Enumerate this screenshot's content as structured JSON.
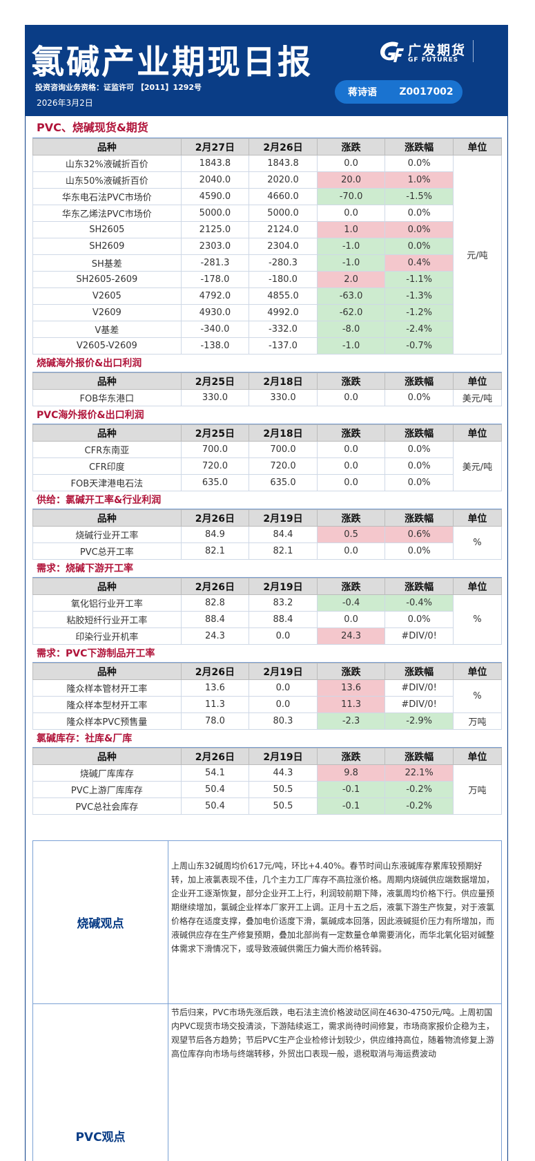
{
  "header": {
    "title": "氯碱产业期现日报",
    "license": "投资咨询业务资格：证监许可 【2011】1292号",
    "date": "2026年3月2日",
    "logo_cn": "广发期货",
    "logo_en": "GF FUTURES",
    "analyst_name": "蒋诗语",
    "analyst_id": "Z0017002"
  },
  "sections": [
    {
      "title": "PVC、烧碱现货&期货",
      "headers": [
        "品种",
        "2月27日",
        "2月26日",
        "涨跌",
        "涨跌幅",
        "单位"
      ],
      "unit": "元/吨",
      "rows": [
        {
          "name": "山东32%液碱折百价",
          "v1": "1843.8",
          "v2": "1843.8",
          "chg": "0.0",
          "pct": "0.0%"
        },
        {
          "name": "山东50%液碱折百价",
          "v1": "2040.0",
          "v2": "2020.0",
          "chg": "20.0",
          "pct": "1.0%"
        },
        {
          "name": "华东电石法PVC市场价",
          "v1": "4590.0",
          "v2": "4660.0",
          "chg": "-70.0",
          "pct": "-1.5%"
        },
        {
          "name": "华东乙烯法PVC市场价",
          "v1": "5000.0",
          "v2": "5000.0",
          "chg": "0.0",
          "pct": "0.0%"
        },
        {
          "name": "SH2605",
          "v1": "2125.0",
          "v2": "2124.0",
          "chg": "1.0",
          "pct": "0.0%"
        },
        {
          "name": "SH2609",
          "v1": "2303.0",
          "v2": "2304.0",
          "chg": "-1.0",
          "pct": "0.0%"
        },
        {
          "name": "SH基差",
          "v1": "-281.3",
          "v2": "-280.3",
          "chg": "-1.0",
          "pct": "0.4%"
        },
        {
          "name": "SH2605-2609",
          "v1": "-178.0",
          "v2": "-180.0",
          "chg": "2.0",
          "pct": "-1.1%"
        },
        {
          "name": "V2605",
          "v1": "4792.0",
          "v2": "4855.0",
          "chg": "-63.0",
          "pct": "-1.3%"
        },
        {
          "name": "V2609",
          "v1": "4930.0",
          "v2": "4992.0",
          "chg": "-62.0",
          "pct": "-1.2%"
        },
        {
          "name": "V基差",
          "v1": "-340.0",
          "v2": "-332.0",
          "chg": "-8.0",
          "pct": "-2.4%"
        },
        {
          "name": "V2605-V2609",
          "v1": "-138.0",
          "v2": "-137.0",
          "chg": "-1.0",
          "pct": "-0.7%"
        }
      ]
    },
    {
      "title": "烧碱海外报价&出口利润",
      "headers": [
        "品种",
        "2月25日",
        "2月18日",
        "涨跌",
        "涨跌幅",
        "单位"
      ],
      "unit": "美元/吨",
      "rows": [
        {
          "name": "FOB华东港口",
          "v1": "330.0",
          "v2": "330.0",
          "chg": "0.0",
          "pct": "0.0%"
        }
      ]
    },
    {
      "title": "PVC海外报价&出口利润",
      "headers": [
        "品种",
        "2月25日",
        "2月18日",
        "涨跌",
        "涨跌幅",
        "单位"
      ],
      "unit": "美元/吨",
      "rows": [
        {
          "name": "CFR东南亚",
          "v1": "700.0",
          "v2": "700.0",
          "chg": "0.0",
          "pct": "0.0%"
        },
        {
          "name": "CFR印度",
          "v1": "720.0",
          "v2": "720.0",
          "chg": "0.0",
          "pct": "0.0%"
        },
        {
          "name": "FOB天津港电石法",
          "v1": "635.0",
          "v2": "635.0",
          "chg": "0.0",
          "pct": "0.0%"
        }
      ]
    },
    {
      "title": "供给：氯碱开工率&行业利润",
      "headers": [
        "品种",
        "2月26日",
        "2月19日",
        "涨跌",
        "涨跌幅",
        "单位"
      ],
      "unit": "%",
      "rows": [
        {
          "name": "烧碱行业开工率",
          "v1": "84.9",
          "v2": "84.4",
          "chg": "0.5",
          "pct": "0.6%"
        },
        {
          "name": "PVC总开工率",
          "v1": "82.1",
          "v2": "82.1",
          "chg": "0.0",
          "pct": "0.0%"
        }
      ]
    },
    {
      "title": "需求：烧碱下游开工率",
      "headers": [
        "品种",
        "2月26日",
        "2月19日",
        "涨跌",
        "涨跌幅",
        "单位"
      ],
      "unit": "%",
      "rows": [
        {
          "name": "氧化铝行业开工率",
          "v1": "82.8",
          "v2": "83.2",
          "chg": "-0.4",
          "pct": "-0.4%"
        },
        {
          "name": "粘胶短纤行业开工率",
          "v1": "88.4",
          "v2": "88.4",
          "chg": "0.0",
          "pct": "0.0%"
        },
        {
          "name": "印染行业开机率",
          "v1": "24.3",
          "v2": "0.0",
          "chg": "24.3",
          "pct": "#DIV/0!"
        }
      ]
    },
    {
      "title": "需求：PVC下游制品开工率",
      "headers": [
        "品种",
        "2月26日",
        "2月19日",
        "涨跌",
        "涨跌幅",
        "单位"
      ],
      "unit": "%",
      "unit2": "万吨",
      "rows": [
        {
          "name": "隆众样本管材开工率",
          "v1": "13.6",
          "v2": "0.0",
          "chg": "13.6",
          "pct": "#DIV/0!"
        },
        {
          "name": "隆众样本型材开工率",
          "v1": "11.3",
          "v2": "0.0",
          "chg": "11.3",
          "pct": "#DIV/0!"
        },
        {
          "name": "隆众样本PVC预售量",
          "v1": "78.0",
          "v2": "80.3",
          "chg": "-2.3",
          "pct": "-2.9%"
        }
      ]
    },
    {
      "title": "氯碱库存：社库&厂库",
      "headers": [
        "品种",
        "2月26日",
        "2月19日",
        "涨跌",
        "涨跌幅",
        "单位"
      ],
      "unit": "万吨",
      "rows": [
        {
          "name": "烧碱厂库库存",
          "v1": "54.1",
          "v2": "44.3",
          "chg": "9.8",
          "pct": "22.1%"
        },
        {
          "name": "PVC上游厂库库存",
          "v1": "50.4",
          "v2": "50.5",
          "chg": "-0.1",
          "pct": "-0.2%"
        },
        {
          "name": "PVC总社会库存",
          "v1": "50.4",
          "v2": "50.5",
          "chg": "-0.1",
          "pct": "-0.2%"
        }
      ]
    }
  ],
  "views": [
    {
      "label": "烧碱观点",
      "text": "上周山东32碱周均价617元/吨，环比+4.40%。春节时间山东液碱库存累库较预期好转，加上液氯表现不佳，几个主力工厂库存不高拉涨价格。周期内烧碱供应端数据增加，企业开工逐渐恢复，部分企业开工上行，利润较前期下降，液氯周均价格下行。供应量预期继续增加，氯碱企业样本厂家开工上调。正月十五之后，液氯下游生产恢复，对于液氯价格存在适度支撑，叠加电价适度下滑，氯碱成本回落，因此液碱挺价压力有所增加，而液碱供应存在生产修复预期，叠加北部尚有一定数量仓单需要消化，而华北氧化铝对碱整体需求下滑情况下，或导致液碱供需压力偏大而价格转弱。"
    },
    {
      "label": "PVC观点",
      "text": "节后归来，PVC市场先涨后跌，电石法主流价格波动区间在4630-4750元/吨。上周初国内PVC现货市场交投清淡，下游陆续返工，需求尚待时间修复，市场商家报价企稳为主，观望节后各方趋势；节后PVC生产企业检修计划较少，供应维持高位，随着物流修复上游高位库存向市场与终端转移，外贸出口表现一般，退税取消与海运费波动"
    }
  ]
}
